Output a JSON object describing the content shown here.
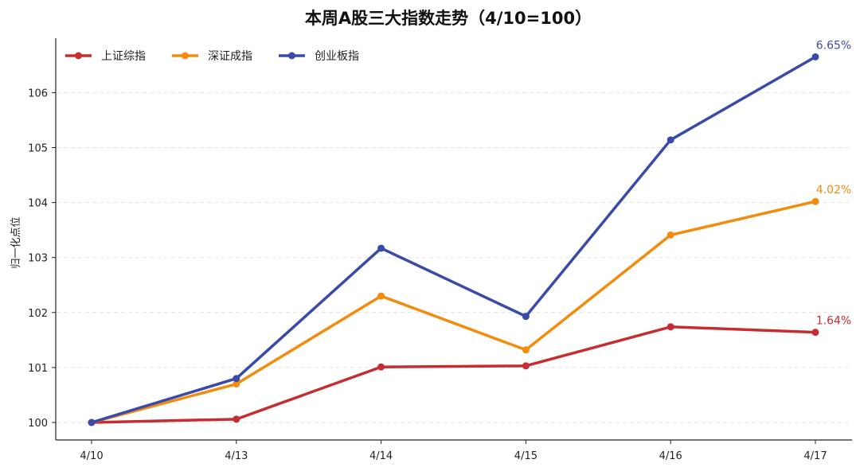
{
  "chart_data": {
    "type": "line",
    "title": "本周A股三大指数走势（4/10=100）",
    "xlabel": "",
    "ylabel": "归一化点位",
    "categories": [
      "4/10",
      "4/13",
      "4/14",
      "4/15",
      "4/16",
      "4/17"
    ],
    "yticks": [
      100,
      101,
      102,
      103,
      104,
      105,
      106
    ],
    "ylim": [
      99.67,
      106.98
    ],
    "grid": "y-dashed",
    "legend_position": "upper-left",
    "series": [
      {
        "name": "上证综指",
        "color": "#c62d31",
        "values": [
          100.0,
          100.06,
          101.01,
          101.03,
          101.74,
          101.64
        ],
        "end_label": "1.64%"
      },
      {
        "name": "深证成指",
        "color": "#f28c0f",
        "values": [
          100.0,
          100.7,
          102.3,
          101.32,
          103.41,
          104.02
        ],
        "end_label": "4.02%"
      },
      {
        "name": "创业板指",
        "color": "#3a4aa8",
        "values": [
          100.0,
          100.8,
          103.17,
          101.93,
          105.14,
          106.65
        ],
        "end_label": "6.65%"
      }
    ]
  }
}
